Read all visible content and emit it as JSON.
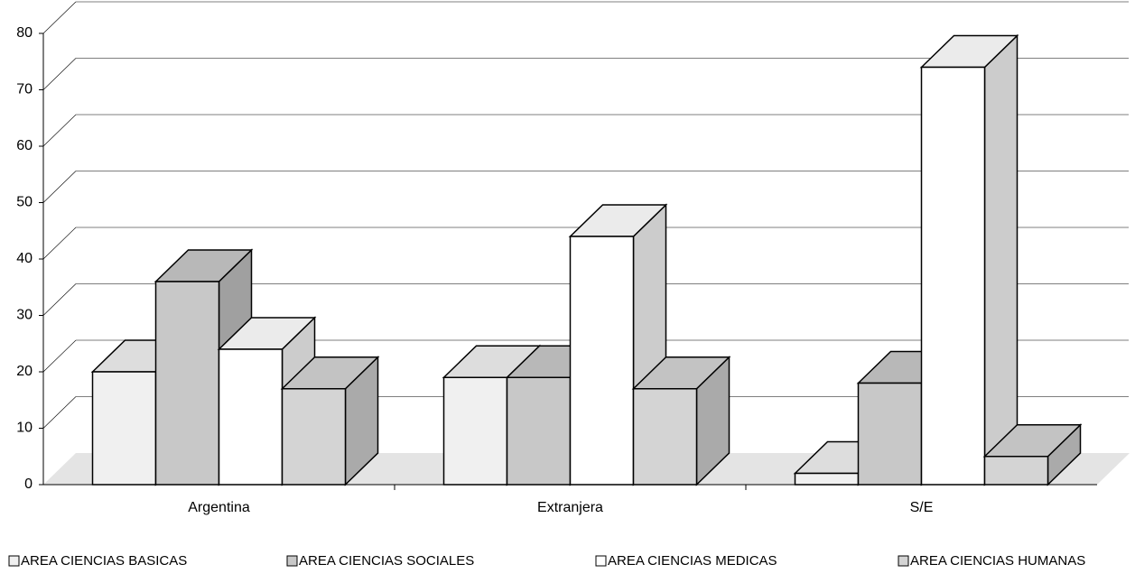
{
  "chart_data": {
    "type": "bar",
    "categories": [
      "Argentina",
      "Extranjera",
      "S/E"
    ],
    "series": [
      {
        "name": "AREA CIENCIAS BASICAS",
        "color": "#f0f0f0",
        "values": [
          20,
          19,
          2
        ]
      },
      {
        "name": "AREA CIENCIAS SOCIALES",
        "color": "#c8c8c8",
        "values": [
          36,
          19,
          18
        ]
      },
      {
        "name": "AREA CIENCIAS MEDICAS",
        "color": "#ffffff",
        "values": [
          24,
          44,
          74
        ]
      },
      {
        "name": "AREA CIENCIAS HUMANAS",
        "color": "#d4d4d4",
        "values": [
          17,
          17,
          5
        ]
      }
    ],
    "ylim": [
      0,
      80
    ],
    "yticks": [
      0,
      10,
      20,
      30,
      40,
      50,
      60,
      70,
      80
    ],
    "grid": true,
    "legend": "bottom"
  }
}
